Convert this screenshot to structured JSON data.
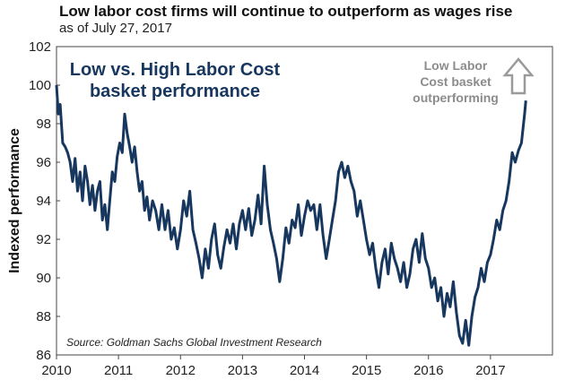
{
  "chart_data": {
    "type": "line",
    "title": "Low labor cost firms will continue to outperform as wages rise",
    "subtitle": "as of July 27, 2017",
    "ylabel": "Indexed performance",
    "xlabel": "",
    "ylim": [
      86,
      102
    ],
    "yticks": [
      "86",
      "88",
      "90",
      "92",
      "94",
      "96",
      "98",
      "100",
      "102"
    ],
    "xticks": [
      "2010",
      "2011",
      "2012",
      "2013",
      "2014",
      "2015",
      "2016",
      "2017"
    ],
    "xlim": [
      2010.0,
      2018.0
    ],
    "grid": false,
    "series": [
      {
        "name": "Low vs. High Labor Cost basket performance",
        "color": "#17375e",
        "x": [
          2010.0,
          2010.03,
          2010.06,
          2010.1,
          2010.14,
          2010.18,
          2010.22,
          2010.26,
          2010.3,
          2010.34,
          2010.38,
          2010.42,
          2010.46,
          2010.5,
          2010.54,
          2010.58,
          2010.62,
          2010.66,
          2010.7,
          2010.74,
          2010.78,
          2010.82,
          2010.86,
          2010.9,
          2010.94,
          2010.98,
          2011.02,
          2011.06,
          2011.1,
          2011.14,
          2011.18,
          2011.22,
          2011.26,
          2011.3,
          2011.34,
          2011.38,
          2011.42,
          2011.46,
          2011.5,
          2011.55,
          2011.6,
          2011.65,
          2011.7,
          2011.75,
          2011.8,
          2011.85,
          2011.9,
          2011.95,
          2012.0,
          2012.05,
          2012.1,
          2012.15,
          2012.2,
          2012.25,
          2012.3,
          2012.35,
          2012.4,
          2012.45,
          2012.5,
          2012.55,
          2012.6,
          2012.65,
          2012.7,
          2012.75,
          2012.8,
          2012.85,
          2012.9,
          2012.95,
          2013.0,
          2013.05,
          2013.1,
          2013.15,
          2013.2,
          2013.25,
          2013.3,
          2013.35,
          2013.4,
          2013.45,
          2013.5,
          2013.55,
          2013.6,
          2013.65,
          2013.7,
          2013.75,
          2013.8,
          2013.85,
          2013.9,
          2013.95,
          2014.0,
          2014.05,
          2014.1,
          2014.15,
          2014.2,
          2014.25,
          2014.3,
          2014.35,
          2014.4,
          2014.45,
          2014.5,
          2014.55,
          2014.6,
          2014.65,
          2014.7,
          2014.75,
          2014.8,
          2014.85,
          2014.9,
          2014.95,
          2015.0,
          2015.05,
          2015.1,
          2015.15,
          2015.2,
          2015.25,
          2015.3,
          2015.35,
          2015.4,
          2015.45,
          2015.5,
          2015.55,
          2015.6,
          2015.65,
          2015.7,
          2015.75,
          2015.8,
          2015.85,
          2015.9,
          2015.95,
          2016.0,
          2016.05,
          2016.1,
          2016.15,
          2016.2,
          2016.25,
          2016.3,
          2016.35,
          2016.4,
          2016.45,
          2016.5,
          2016.55,
          2016.6,
          2016.65,
          2016.7,
          2016.75,
          2016.8,
          2016.85,
          2016.9,
          2016.95,
          2017.0,
          2017.05,
          2017.1,
          2017.15,
          2017.2,
          2017.25,
          2017.3,
          2017.35,
          2017.4,
          2017.45,
          2017.5,
          2017.55,
          2017.57
        ],
        "y": [
          100.0,
          98.5,
          99.0,
          97.0,
          96.8,
          96.5,
          96.0,
          95.0,
          96.2,
          94.5,
          95.5,
          94.0,
          95.8,
          95.0,
          93.8,
          94.8,
          93.5,
          94.5,
          95.0,
          93.0,
          93.8,
          92.5,
          94.0,
          95.5,
          95.0,
          96.3,
          97.0,
          96.5,
          98.5,
          97.5,
          96.8,
          96.0,
          96.8,
          95.5,
          94.5,
          95.0,
          93.5,
          94.2,
          93.0,
          94.0,
          93.5,
          92.5,
          93.8,
          92.5,
          93.5,
          92.0,
          92.6,
          91.5,
          92.5,
          94.0,
          93.2,
          94.5,
          92.5,
          91.8,
          91.0,
          90.0,
          91.5,
          90.5,
          92.0,
          92.8,
          91.2,
          90.5,
          91.6,
          92.5,
          91.8,
          92.8,
          91.5,
          92.8,
          93.5,
          92.5,
          93.6,
          92.2,
          93.0,
          94.3,
          92.8,
          95.8,
          93.8,
          92.5,
          91.8,
          91.0,
          89.8,
          91.0,
          92.6,
          91.8,
          93.0,
          92.6,
          93.8,
          92.2,
          93.2,
          94.0,
          93.5,
          93.8,
          92.5,
          93.8,
          92.2,
          91.0,
          92.0,
          93.0,
          94.0,
          95.5,
          96.0,
          95.2,
          95.8,
          95.0,
          94.5,
          93.2,
          94.0,
          93.0,
          92.0,
          91.2,
          91.8,
          90.5,
          89.5,
          90.8,
          91.5,
          90.2,
          91.8,
          91.0,
          90.5,
          89.8,
          90.8,
          89.5,
          90.2,
          91.5,
          92.0,
          90.8,
          92.3,
          91.0,
          90.5,
          89.5,
          90.0,
          88.8,
          89.5,
          88.0,
          89.2,
          88.5,
          89.8,
          88.2,
          87.0,
          86.6,
          87.8,
          86.5,
          88.0,
          89.0,
          89.5,
          90.5,
          89.8,
          90.8,
          91.2,
          92.0,
          93.0,
          92.5,
          93.5,
          94.0,
          95.0,
          96.5,
          96.0,
          96.6,
          97.0,
          98.5,
          99.2
        ]
      }
    ],
    "series_label_lines": [
      "Low vs. High Labor Cost",
      "basket performance"
    ],
    "annotation_lines": [
      "Low Labor",
      "Cost basket",
      "outperforming"
    ],
    "source": "Source: Goldman Sachs Global Investment Research"
  }
}
